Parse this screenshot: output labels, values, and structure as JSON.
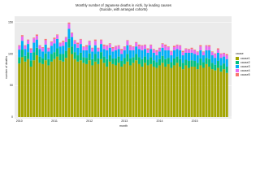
{
  "chart_data": {
    "type": "stacked_bar",
    "title": "Monthly number of Japanese deaths in Aichi, by leading causes",
    "subtitle": "(Suicide, with arranged cohorts)",
    "x_label": "month",
    "y_label": "number of deaths",
    "legend_title": "cause",
    "categories": [
      "2010",
      null,
      null,
      null,
      null,
      null,
      null,
      null,
      null,
      null,
      null,
      null,
      "2011",
      null,
      null,
      null,
      null,
      null,
      null,
      null,
      null,
      null,
      null,
      null,
      "2012",
      null,
      null,
      null,
      null,
      null,
      null,
      null,
      null,
      null,
      null,
      null,
      "2013",
      null,
      null,
      null,
      null,
      null,
      null,
      null,
      null,
      null,
      null,
      null,
      "2014",
      null,
      null,
      null,
      null,
      null,
      null,
      null,
      null,
      null,
      null,
      null,
      "2015",
      null,
      null,
      null,
      null,
      null,
      null,
      null,
      null,
      null,
      null,
      null
    ],
    "series": [
      {
        "name": "cause1",
        "color": "#A3A500",
        "values": [
          85,
          95,
          88,
          92,
          80,
          90,
          98,
          86,
          84,
          90,
          82,
          88,
          92,
          96,
          90,
          88,
          94,
          110,
          100,
          92,
          88,
          90,
          86,
          84,
          90,
          82,
          88,
          84,
          92,
          86,
          80,
          88,
          84,
          82,
          86,
          80,
          84,
          88,
          82,
          86,
          90,
          84,
          80,
          86,
          82,
          84,
          80,
          78,
          82,
          86,
          80,
          84,
          78,
          82,
          86,
          80,
          76,
          82,
          78,
          80,
          80,
          76,
          82,
          78,
          84,
          80,
          76,
          74,
          78,
          72,
          76,
          70
        ]
      },
      {
        "name": "cause2",
        "color": "#00BF7D",
        "values": [
          10,
          12,
          9,
          11,
          10,
          13,
          12,
          10,
          9,
          11,
          10,
          12,
          11,
          13,
          10,
          12,
          11,
          14,
          12,
          11,
          10,
          12,
          9,
          10,
          11,
          10,
          12,
          9,
          11,
          10,
          12,
          10,
          9,
          11,
          10,
          9,
          10,
          12,
          11,
          9,
          10,
          11,
          12,
          10,
          9,
          11,
          10,
          9,
          10,
          11,
          12,
          10,
          9,
          11,
          10,
          12,
          10,
          9,
          11,
          10,
          9,
          10,
          11,
          9,
          10,
          12,
          10,
          9,
          11,
          10,
          9,
          10
        ]
      },
      {
        "name": "cause3",
        "color": "#00B0F6",
        "values": [
          12,
          14,
          11,
          13,
          12,
          15,
          13,
          12,
          11,
          14,
          12,
          13,
          14,
          15,
          12,
          13,
          14,
          16,
          15,
          13,
          12,
          14,
          11,
          12,
          13,
          12,
          14,
          11,
          13,
          12,
          14,
          12,
          11,
          13,
          12,
          11,
          12,
          14,
          13,
          11,
          12,
          13,
          14,
          12,
          11,
          13,
          12,
          11,
          12,
          13,
          14,
          12,
          11,
          13,
          12,
          14,
          12,
          11,
          13,
          12,
          11,
          12,
          13,
          11,
          12,
          14,
          12,
          11,
          13,
          12,
          11,
          12
        ]
      },
      {
        "name": "cause4",
        "color": "#E76BF3",
        "values": [
          6,
          7,
          5,
          6,
          5,
          7,
          6,
          5,
          6,
          7,
          5,
          6,
          7,
          6,
          5,
          6,
          7,
          8,
          6,
          5,
          6,
          7,
          5,
          6,
          6,
          5,
          7,
          5,
          6,
          5,
          7,
          6,
          5,
          6,
          5,
          6,
          5,
          7,
          6,
          5,
          6,
          5,
          7,
          6,
          5,
          6,
          5,
          6,
          5,
          6,
          7,
          5,
          6,
          5,
          6,
          7,
          5,
          6,
          5,
          6,
          6,
          5,
          6,
          5,
          7,
          6,
          5,
          6,
          5,
          6,
          5,
          6
        ]
      },
      {
        "name": "cause5",
        "color": "#F8766D",
        "values": [
          1,
          2,
          1,
          1,
          2,
          1,
          2,
          1,
          1,
          2,
          1,
          1,
          2,
          1,
          1,
          2,
          1,
          2,
          1,
          1,
          2,
          1,
          1,
          2,
          1,
          1,
          2,
          1,
          1,
          2,
          1,
          1,
          2,
          1,
          1,
          2,
          1,
          1,
          2,
          1,
          1,
          2,
          1,
          1,
          2,
          1,
          1,
          2,
          1,
          1,
          2,
          1,
          1,
          2,
          1,
          1,
          2,
          1,
          1,
          2,
          1,
          1,
          2,
          1,
          1,
          2,
          1,
          1,
          2,
          1,
          1,
          2
        ]
      }
    ],
    "ylim": [
      0,
      160
    ],
    "yticks": [
      0,
      50,
      100,
      150
    ],
    "grid": true,
    "legend": "right"
  }
}
